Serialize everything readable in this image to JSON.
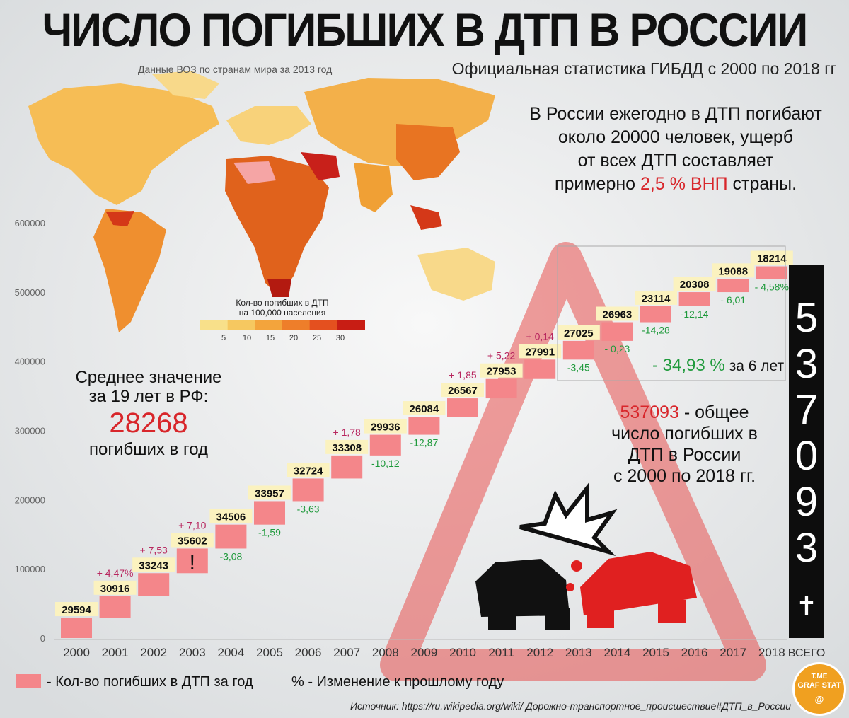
{
  "header": {
    "title": "ЧИСЛО ПОГИБШИХ В ДТП В РОССИИ",
    "subtitle": "Официальная статистика ГИБДД с 2000 по 2018 гг"
  },
  "map": {
    "title": "Данные ВОЗ по странам мира за 2013 год",
    "legend_title_1": "Кол-во погибших в ДТП",
    "legend_title_2": "на 100,000 населения",
    "legend_ticks": [
      "5",
      "10",
      "15",
      "20",
      "25",
      "30"
    ],
    "legend_colors": [
      "#f8e08a",
      "#f6c860",
      "#f3a43c",
      "#ee7e2a",
      "#e4501f",
      "#c81d14"
    ]
  },
  "facts": {
    "line1": "В России ежегодно в ДТП погибают",
    "line2": "около 20000 человек, ущерб",
    "line3": "от всех ДТП составляет",
    "line4_pre": "примерно ",
    "line4_red": "2,5 % ВНП",
    "line4_post": " страны."
  },
  "average": {
    "line1": "Среднее значение",
    "line2": "за 19 лет в РФ:",
    "value": "28268",
    "line3": "погибших в год"
  },
  "total": {
    "value": "537093",
    "text_red": "537093",
    "text1": " - общее",
    "text2": "число погибших в",
    "text3": "ДТП в России",
    "text4": "с 2000 по 2018 гг.",
    "cross": "✝",
    "label": "ВСЕГО"
  },
  "six_years": {
    "pct": "- 34,93 %",
    "text": " за 6 лет"
  },
  "legend": {
    "bar_label": "- Кол-во погибших в ДТП за год",
    "pct_label": "% - Изменение к прошлому году"
  },
  "source": "Источник: https://ru.wikipedia.org/wiki/ Дорожно-транспортное_происшествие#ДТП_в_России",
  "badge": {
    "line1": "T.ME",
    "line2": "GRAF STAT",
    "line3": "@"
  },
  "colors": {
    "bar": "#f4868a",
    "label_bg": "#fbf2bf",
    "increase": "#b8275f",
    "decrease": "#1f9a3c",
    "accent_red": "#d8262b"
  },
  "chart_data": {
    "type": "waterfall",
    "title": "ЧИСЛО ПОГИБШИХ В ДТП В РОССИИ",
    "xlabel": "",
    "ylabel": "",
    "ylim": [
      0,
      600000
    ],
    "yticks": [
      0,
      100000,
      200000,
      300000,
      400000,
      500000,
      600000
    ],
    "grid": false,
    "categories": [
      "2000",
      "2001",
      "2002",
      "2003",
      "2004",
      "2005",
      "2006",
      "2007",
      "2008",
      "2009",
      "2010",
      "2011",
      "2012",
      "2013",
      "2014",
      "2015",
      "2016",
      "2017",
      "2018"
    ],
    "values": [
      29594,
      30916,
      33243,
      35602,
      34506,
      33957,
      32724,
      33308,
      29936,
      26084,
      26567,
      27953,
      27991,
      27025,
      26963,
      23114,
      20308,
      19088,
      18214
    ],
    "changes": [
      "",
      "+ 4,47%",
      "+ 7,53",
      "+ 7,10",
      "-3,08",
      "-1,59",
      "-3,63",
      "+ 1,78",
      "-10,12",
      "-12,87",
      "+ 1,85",
      "+ 5,22",
      "+ 0,14",
      "-3,45",
      "- 0,23",
      "-14,28",
      "-12,14",
      "- 6,01",
      "- 4,58%"
    ],
    "year_2003_mark": "!",
    "total_category": "ВСЕГО",
    "total_value": 537093
  }
}
